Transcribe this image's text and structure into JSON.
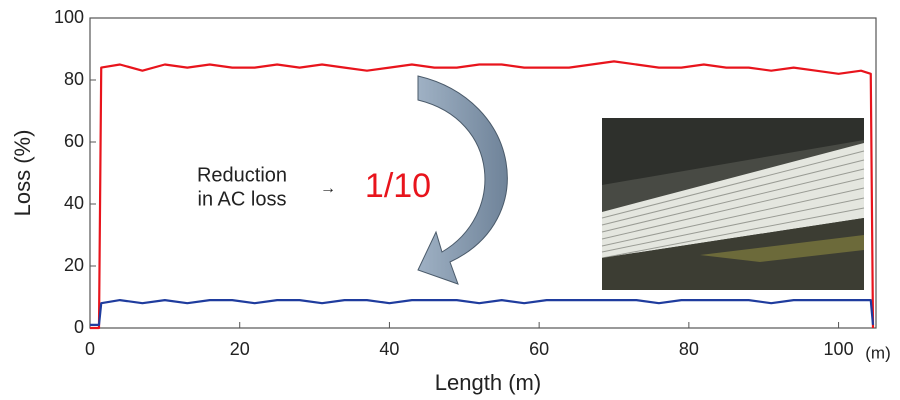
{
  "chart_data": {
    "type": "line",
    "x_label": "Length (m)",
    "y_label": "Loss (%)",
    "x_unit": "(m)",
    "annotations": {
      "reduction_line1": "Reduction",
      "reduction_line2": "in AC loss",
      "arrow": "→",
      "ratio": "1/10"
    },
    "x": [
      0,
      1.2,
      1.5,
      4,
      7,
      10,
      13,
      16,
      19,
      22,
      25,
      28,
      31,
      34,
      37,
      40,
      43,
      46,
      49,
      52,
      55,
      58,
      61,
      64,
      67,
      70,
      73,
      76,
      79,
      82,
      85,
      88,
      91,
      94,
      97,
      100,
      103,
      104.3,
      104.6
    ],
    "series": [
      {
        "color": "#e8141c",
        "values": [
          0,
          0,
          84,
          85,
          83,
          85,
          84,
          85,
          84,
          84,
          85,
          84,
          85,
          84,
          83,
          84,
          85,
          84,
          84,
          85,
          85,
          84,
          84,
          84,
          85,
          86,
          85,
          84,
          84,
          85,
          84,
          84,
          83,
          84,
          83,
          82,
          83,
          82,
          0
        ]
      },
      {
        "color": "#1f3c9e",
        "values": [
          1,
          1,
          8,
          9,
          8,
          9,
          8,
          9,
          9,
          8,
          9,
          9,
          8,
          9,
          9,
          8,
          9,
          9,
          9,
          8,
          9,
          8,
          9,
          9,
          9,
          9,
          9,
          8,
          9,
          9,
          9,
          9,
          8,
          9,
          9,
          9,
          9,
          9,
          1
        ]
      }
    ],
    "xlim": [
      0,
      105
    ],
    "ylim": [
      0,
      100
    ],
    "xticks": [
      0,
      20,
      40,
      60,
      80,
      100
    ],
    "yticks": [
      0,
      20,
      40,
      60,
      80,
      100
    ]
  }
}
